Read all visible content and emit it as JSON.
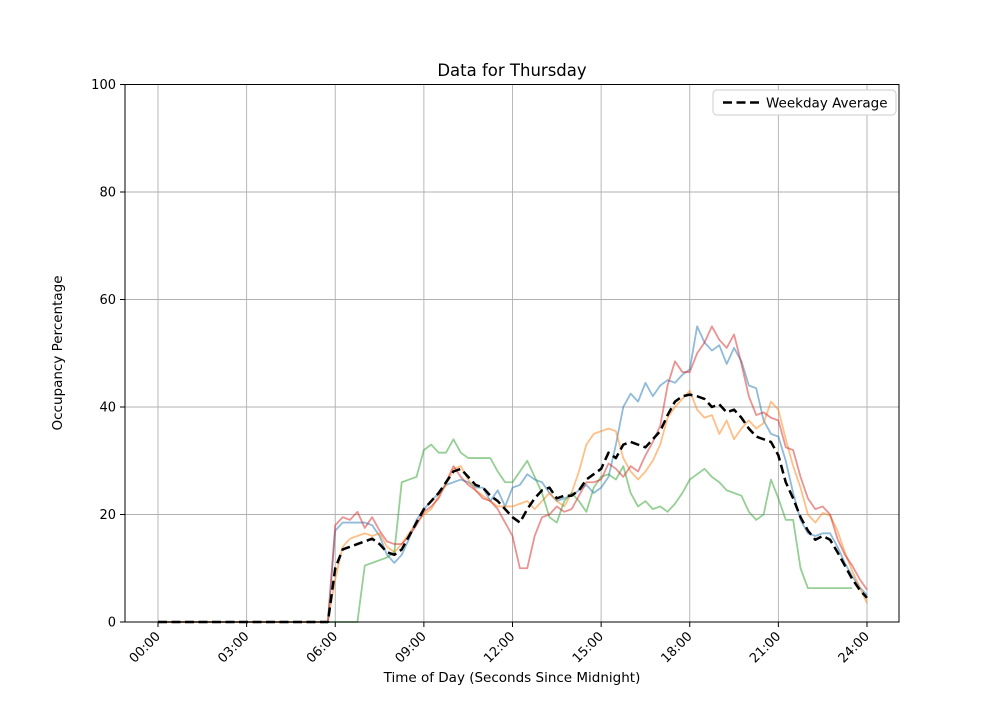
{
  "figure": {
    "title": "Data for Thursday",
    "xlabel": "Time of Day (Seconds Since Midnight)",
    "ylabel": "Occupancy Percentage",
    "background": "#ffffff",
    "grid_color": "#b0b0b0",
    "spine_color": "#000000"
  },
  "legend": {
    "position": "upper right",
    "entries": [
      {
        "label": "Weekday Average",
        "line_style": "dashed",
        "color": "#000000"
      }
    ]
  },
  "chart_data": {
    "type": "line",
    "title": "Data for Thursday",
    "xlabel": "Time of Day (Seconds Since Midnight)",
    "ylabel": "Occupancy Percentage",
    "grid": true,
    "legend_position": "upper right",
    "ylim": [
      0,
      100
    ],
    "xlim_hours": [
      -1.2,
      25.2
    ],
    "y_ticks": [
      0,
      20,
      40,
      60,
      80,
      100
    ],
    "x_tick_hours": [
      0,
      3,
      6,
      9,
      12,
      15,
      18,
      21,
      24
    ],
    "x_tick_labels": [
      "00:00",
      "03:00",
      "06:00",
      "09:00",
      "12:00",
      "15:00",
      "18:00",
      "21:00",
      "24:00"
    ],
    "x_tick_rotation_deg": 45,
    "x_start_hours": 0,
    "x_step_hours": 0.25,
    "n_points": 97,
    "series": [
      {
        "id": "day-series-1",
        "label": null,
        "color": "#1f77b4",
        "opacity": 0.5,
        "dashed": false,
        "line_width": 1.8,
        "values": [
          0,
          0,
          0,
          0,
          0,
          0,
          0,
          0,
          0,
          0,
          0,
          0,
          0,
          0,
          0,
          0,
          0,
          0,
          0,
          0,
          0,
          0,
          0,
          0,
          17,
          18.5,
          18.5,
          18.5,
          18.5,
          18,
          16,
          12.5,
          11,
          12.5,
          15.5,
          19,
          21,
          22.5,
          24,
          25.5,
          26,
          26.5,
          26,
          25,
          25,
          22.5,
          24.5,
          21.5,
          25,
          25.5,
          27.5,
          26.5,
          26,
          24,
          22.5,
          23,
          23.5,
          24.5,
          25.5,
          24,
          25,
          27,
          33,
          40,
          42.5,
          41,
          44.5,
          42,
          44,
          45,
          44.5,
          46,
          47,
          55,
          52,
          50.5,
          51.5,
          48,
          51,
          48.5,
          44,
          43.5,
          37.5,
          35,
          34.5,
          30,
          24,
          19,
          16.5,
          16,
          16.5,
          16.5,
          14,
          11,
          8.5,
          6.5,
          5
        ]
      },
      {
        "id": "day-series-2",
        "label": null,
        "color": "#ff7f0e",
        "opacity": 0.5,
        "dashed": false,
        "line_width": 1.8,
        "values": [
          0,
          0,
          0,
          0,
          0,
          0,
          0,
          0,
          0,
          0,
          0,
          0,
          0,
          0,
          0,
          0,
          0,
          0,
          0,
          0,
          0,
          0,
          0,
          0,
          8,
          14,
          15.5,
          16,
          16.5,
          16,
          16.5,
          14,
          13,
          14.5,
          16.5,
          18.5,
          20,
          21,
          23.5,
          25.5,
          28.5,
          29,
          26.5,
          24.5,
          23.5,
          22.5,
          21.5,
          21.5,
          21.5,
          22,
          22.5,
          21,
          22.5,
          24,
          22.5,
          21.5,
          24,
          28,
          33,
          35,
          35.5,
          36,
          35.5,
          30.5,
          28,
          26.5,
          28,
          30,
          33,
          38,
          40,
          41.5,
          43,
          39.5,
          38,
          38.5,
          35,
          37.5,
          34,
          36,
          37.5,
          36,
          37,
          41,
          39.5,
          34,
          29,
          25,
          20,
          18.5,
          20.3,
          19.8,
          17,
          13,
          9.5,
          6.5,
          3.5
        ]
      },
      {
        "id": "day-series-3",
        "label": null,
        "color": "#2ca02c",
        "opacity": 0.5,
        "dashed": false,
        "line_width": 1.8,
        "values": [
          0,
          0,
          0,
          0,
          0,
          0,
          0,
          0,
          0,
          0,
          0,
          0,
          0,
          0,
          0,
          0,
          0,
          0,
          0,
          0,
          0,
          0,
          0,
          0,
          0,
          0,
          0,
          0,
          10.5,
          11,
          11.5,
          12,
          13,
          26,
          26.5,
          27,
          32,
          33,
          31.5,
          31.5,
          34,
          31.5,
          30.5,
          30.5,
          30.5,
          30.5,
          28,
          26,
          26,
          28,
          30,
          27,
          24,
          19.5,
          18.5,
          22.5,
          24,
          22.5,
          20.5,
          25,
          27,
          27.5,
          26.5,
          29,
          24,
          21.5,
          22.5,
          21,
          21.5,
          20.5,
          22,
          24,
          26.5,
          27.5,
          28.5,
          27,
          26,
          24.5,
          24,
          23.5,
          20.5,
          19,
          20,
          26.5,
          23,
          19,
          19,
          10,
          6.3,
          6.3,
          6.3,
          6.3,
          6.3,
          6.3,
          6.3,
          null,
          null
        ]
      },
      {
        "id": "day-series-4",
        "label": null,
        "color": "#d62728",
        "opacity": 0.5,
        "dashed": false,
        "line_width": 1.8,
        "values": [
          0,
          0,
          0,
          0,
          0,
          0,
          0,
          0,
          0,
          0,
          0,
          0,
          0,
          0,
          0,
          0,
          0,
          0,
          0,
          0,
          0,
          0,
          0,
          0,
          18,
          19.5,
          19,
          20.5,
          17.5,
          19.5,
          17,
          15,
          14.5,
          14.5,
          16,
          18,
          20.5,
          21.5,
          23,
          26,
          29,
          27,
          25.5,
          24.5,
          23,
          22.5,
          21,
          18.5,
          16,
          10,
          10,
          16,
          19.5,
          20,
          21.5,
          20.5,
          21,
          23.5,
          26,
          26,
          26.5,
          29.5,
          28.5,
          27,
          29,
          28,
          31,
          33.5,
          36.5,
          44,
          48.5,
          46.5,
          46.5,
          50,
          52,
          55,
          52.5,
          51,
          53.5,
          48,
          42,
          38.5,
          39,
          38,
          37.5,
          32.5,
          32,
          27,
          23,
          21,
          21.5,
          20,
          15.5,
          12.5,
          10.5,
          8,
          6
        ]
      },
      {
        "id": "weekday-average",
        "label": "Weekday Average",
        "color": "#000000",
        "opacity": 1,
        "dashed": true,
        "line_width": 2.5,
        "values": [
          0,
          0,
          0,
          0,
          0,
          0,
          0,
          0,
          0,
          0,
          0,
          0,
          0,
          0,
          0,
          0,
          0,
          0,
          0,
          0,
          0,
          0,
          0,
          0,
          10,
          13.5,
          14,
          14.5,
          15,
          15.5,
          14.5,
          13,
          12.5,
          13.5,
          16,
          18.5,
          21,
          22.5,
          24,
          26,
          28,
          28.5,
          27,
          25.5,
          25,
          23.5,
          22.5,
          21,
          19.5,
          18.5,
          21,
          23,
          24.5,
          25,
          23,
          23.5,
          23.5,
          24.5,
          26.5,
          27.5,
          28.5,
          31.5,
          30.5,
          33,
          33.5,
          33,
          32.5,
          34,
          35.5,
          38.5,
          41,
          42,
          42.3,
          42,
          41.5,
          40,
          40.5,
          39,
          39.5,
          38,
          36,
          34.5,
          34,
          33.5,
          31,
          26,
          23,
          19.5,
          17,
          15.3,
          16,
          15.3,
          13,
          10.5,
          8,
          6,
          4.5
        ]
      }
    ]
  }
}
